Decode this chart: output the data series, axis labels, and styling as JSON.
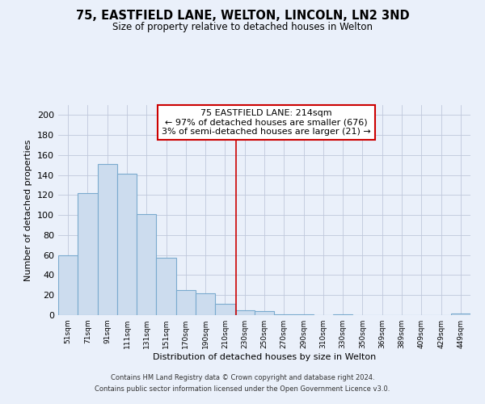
{
  "title": "75, EASTFIELD LANE, WELTON, LINCOLN, LN2 3ND",
  "subtitle": "Size of property relative to detached houses in Welton",
  "xlabel": "Distribution of detached houses by size in Welton",
  "ylabel": "Number of detached properties",
  "bar_labels": [
    "51sqm",
    "71sqm",
    "91sqm",
    "111sqm",
    "131sqm",
    "151sqm",
    "170sqm",
    "190sqm",
    "210sqm",
    "230sqm",
    "250sqm",
    "270sqm",
    "290sqm",
    "310sqm",
    "330sqm",
    "350sqm",
    "369sqm",
    "389sqm",
    "409sqm",
    "429sqm",
    "449sqm"
  ],
  "bar_values": [
    60,
    122,
    151,
    141,
    101,
    57,
    25,
    22,
    11,
    5,
    4,
    1,
    1,
    0,
    1,
    0,
    0,
    0,
    0,
    0,
    2
  ],
  "bar_color": "#ccdcee",
  "bar_edge_color": "#7aaace",
  "ylim": [
    0,
    210
  ],
  "yticks": [
    0,
    20,
    40,
    60,
    80,
    100,
    120,
    140,
    160,
    180,
    200
  ],
  "vline_x_index": 8.55,
  "vline_color": "#cc0000",
  "annotation_title": "75 EASTFIELD LANE: 214sqm",
  "annotation_line1": "← 97% of detached houses are smaller (676)",
  "annotation_line2": "3% of semi-detached houses are larger (21) →",
  "annotation_box_color": "#ffffff",
  "annotation_box_edge": "#cc0000",
  "bg_color": "#eaf0fa",
  "grid_color": "#c0c8dc",
  "footer1": "Contains HM Land Registry data © Crown copyright and database right 2024.",
  "footer2": "Contains public sector information licensed under the Open Government Licence v3.0."
}
